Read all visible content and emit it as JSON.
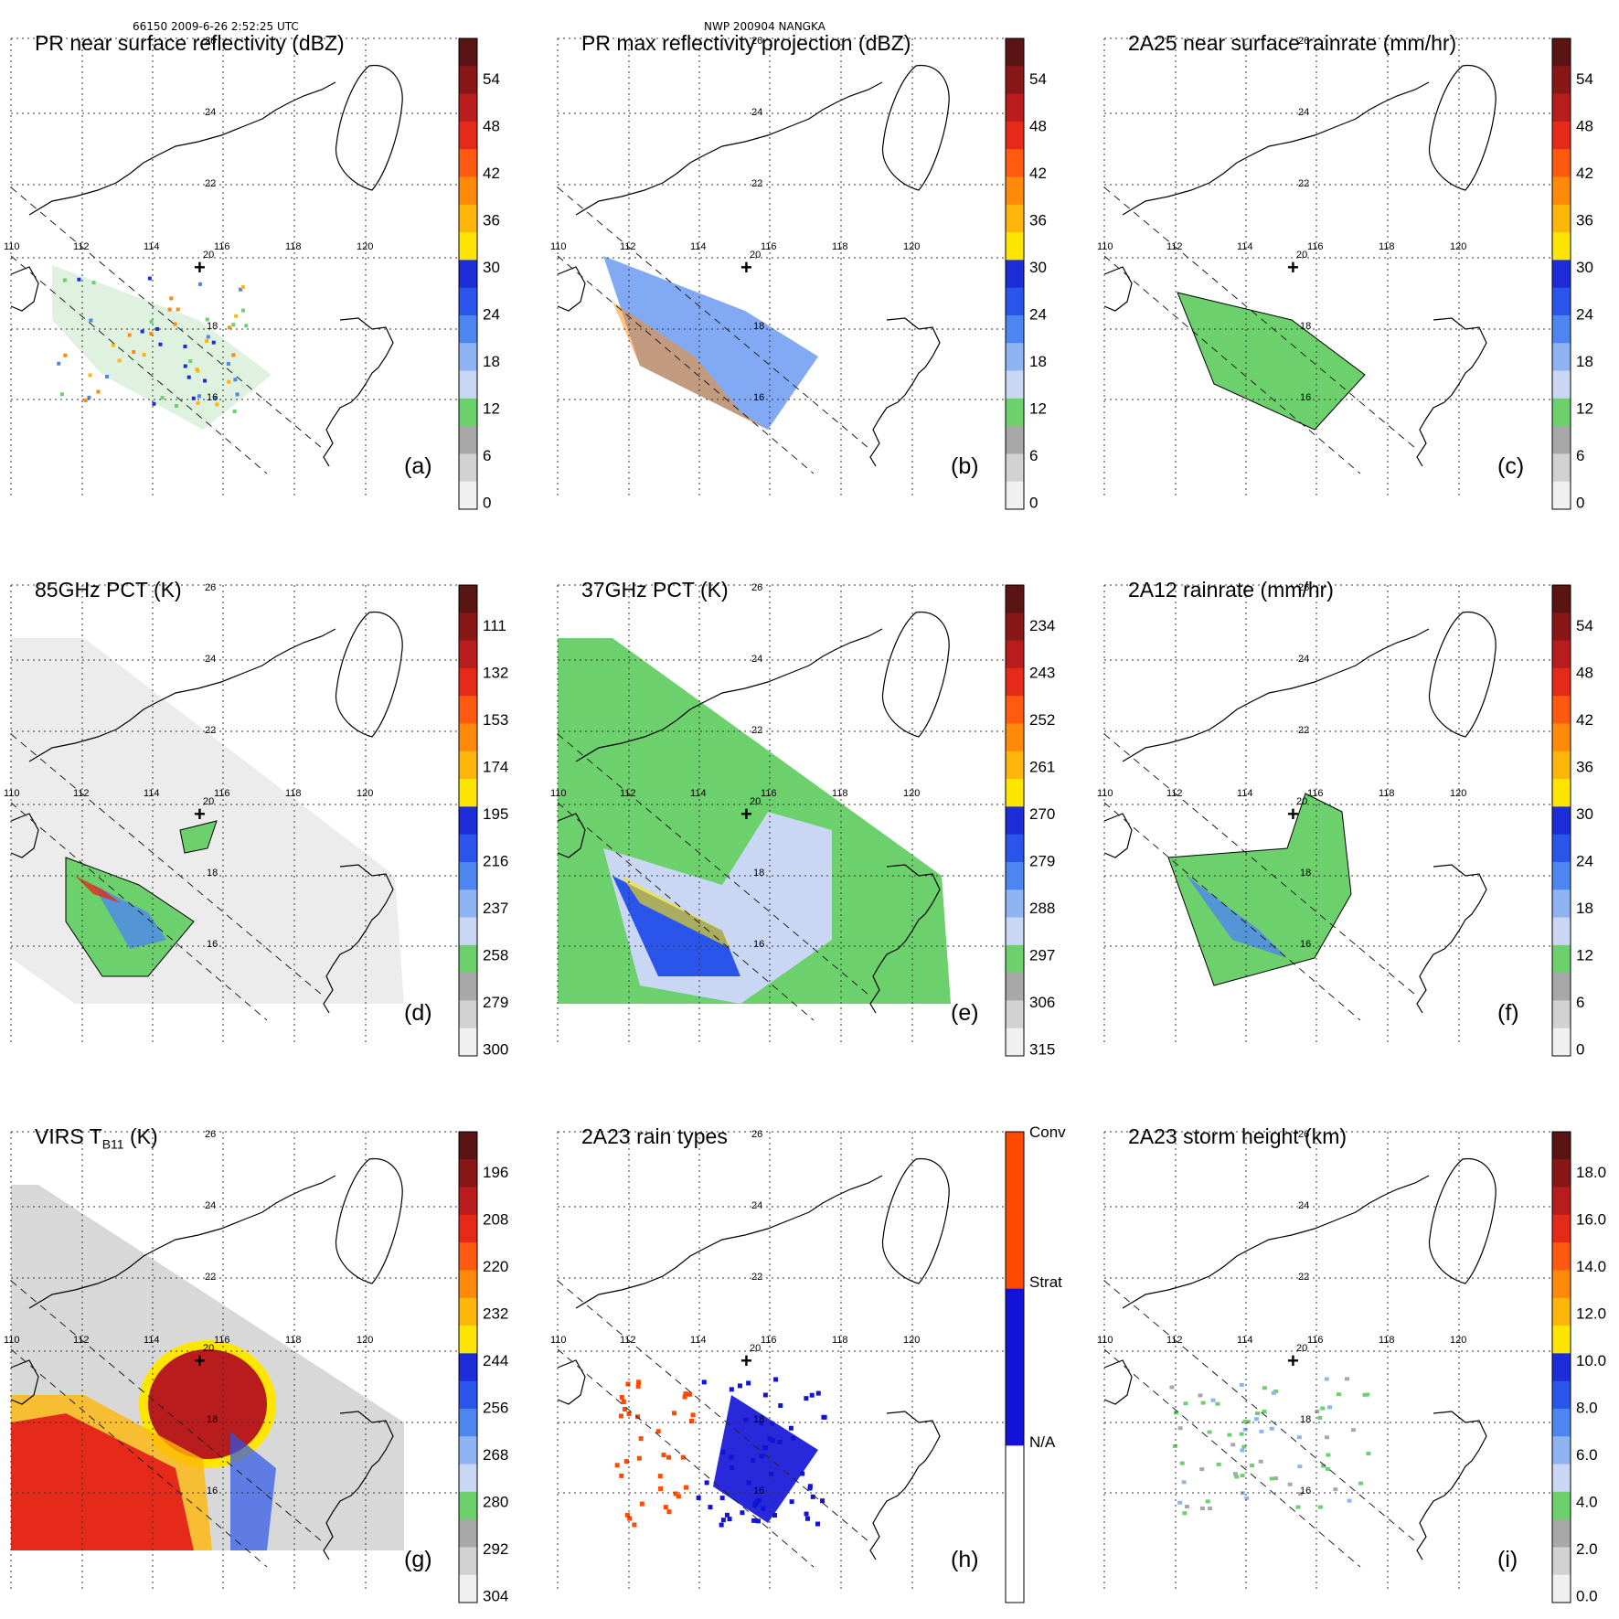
{
  "header": {
    "left": "66150 2009-6-26 2:52:25 UTC",
    "center": "NWP 200904 NANGKA"
  },
  "map": {
    "lon_ticks": [
      "110",
      "112",
      "114",
      "116",
      "118",
      "120"
    ],
    "lat_ticks": [
      "26",
      "24",
      "22",
      "20",
      "18",
      "16"
    ]
  },
  "panels": [
    {
      "title": "PR near surface reflectivity (dBZ)",
      "label": "(a)",
      "colorbar": {
        "ticks": [
          "54",
          "48",
          "42",
          "36",
          "30",
          "24",
          "18",
          "12",
          "6",
          "0"
        ]
      }
    },
    {
      "title": "PR max reflectivity projection (dBZ)",
      "label": "(b)",
      "colorbar": {
        "ticks": [
          "54",
          "48",
          "42",
          "36",
          "30",
          "24",
          "18",
          "12",
          "6",
          "0"
        ]
      }
    },
    {
      "title": "2A25 near surface rainrate (mm/hr)",
      "label": "(c)",
      "colorbar": {
        "ticks": [
          "54",
          "48",
          "42",
          "36",
          "30",
          "24",
          "18",
          "12",
          "6",
          "0"
        ]
      }
    },
    {
      "title": "85GHz PCT (K)",
      "label": "(d)",
      "colorbar": {
        "ticks": [
          "111",
          "132",
          "153",
          "174",
          "195",
          "216",
          "237",
          "258",
          "279",
          "300"
        ]
      }
    },
    {
      "title": "37GHz PCT (K)",
      "label": "(e)",
      "colorbar": {
        "ticks": [
          "234",
          "243",
          "252",
          "261",
          "270",
          "279",
          "288",
          "297",
          "306",
          "315"
        ]
      }
    },
    {
      "title": "2A12 rainrate (mm/hr)",
      "label": "(f)",
      "colorbar": {
        "ticks": [
          "54",
          "48",
          "42",
          "36",
          "30",
          "24",
          "18",
          "12",
          "6",
          "0"
        ]
      }
    },
    {
      "title": "VIRS T",
      "title_sub": "B11",
      "title_tail": " (K)",
      "label": "(g)",
      "colorbar": {
        "ticks": [
          "196",
          "208",
          "220",
          "232",
          "244",
          "256",
          "268",
          "280",
          "292",
          "304"
        ]
      }
    },
    {
      "title": "2A23 rain types",
      "label": "(h)",
      "colorbar": {
        "ticks": [
          "Conv",
          "Strat",
          "N/A"
        ]
      }
    },
    {
      "title": "2A23 storm height (km)",
      "label": "(i)",
      "colorbar": {
        "ticks": [
          "18.0",
          "16.0",
          "14.0",
          "12.0",
          "10.0",
          "8.0",
          "6.0",
          "4.0",
          "2.0",
          "0.0"
        ]
      }
    }
  ],
  "colors": {
    "dbz_scale": [
      "#ffffff",
      "#e6e6e6",
      "#bdbdbd",
      "#9a9a9a",
      "#6fcf6f",
      "#6fcf6f",
      "#c6d6f5",
      "#8fb2f2",
      "#4e82ec",
      "#1f3fe0",
      "#1212d8",
      "#fff000",
      "#ffb000",
      "#ff7a00",
      "#ff4a00",
      "#e01010",
      "#b01010",
      "#801010",
      "#501010"
    ],
    "gray_map": "#f2f2f2",
    "green_map": "#6fcf6f",
    "conv": "#ff4a00",
    "strat": "#1212d8"
  }
}
